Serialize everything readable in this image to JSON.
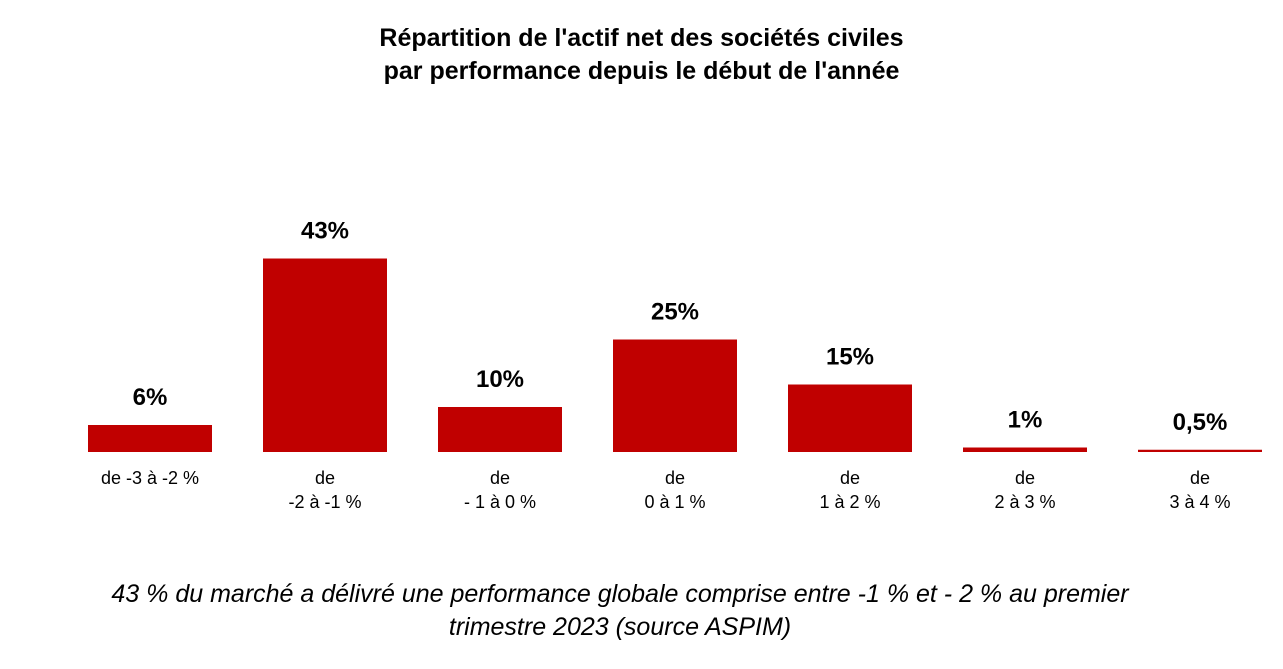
{
  "chart_data": {
    "type": "bar",
    "title_lines": [
      "Répartition de l'actif net des sociétés civiles",
      "par performance depuis le début de l'année"
    ],
    "categories": [
      [
        "de -3 à -2 %"
      ],
      [
        "de",
        "-2 à -1 %"
      ],
      [
        "de",
        "- 1 à 0 %"
      ],
      [
        "de",
        "0 à 1 %"
      ],
      [
        "de",
        "1 à 2 %"
      ],
      [
        "de",
        "2 à 3 %"
      ],
      [
        "de",
        "3 à 4 %"
      ]
    ],
    "values": [
      6,
      43,
      10,
      25,
      15,
      1,
      0.5
    ],
    "data_labels": [
      "6%",
      "43%",
      "10%",
      "25%",
      "15%",
      "1%",
      "0,5%"
    ],
    "unit": "%",
    "ylim": [
      0,
      45
    ],
    "bar_color": "#c00000",
    "grid": false,
    "legend": "none"
  },
  "caption_lines": [
    "43 % du marché a délivré une performance globale comprise entre -1 % et - 2 % au premier",
    "trimestre 2023 (source ASPIM)"
  ]
}
